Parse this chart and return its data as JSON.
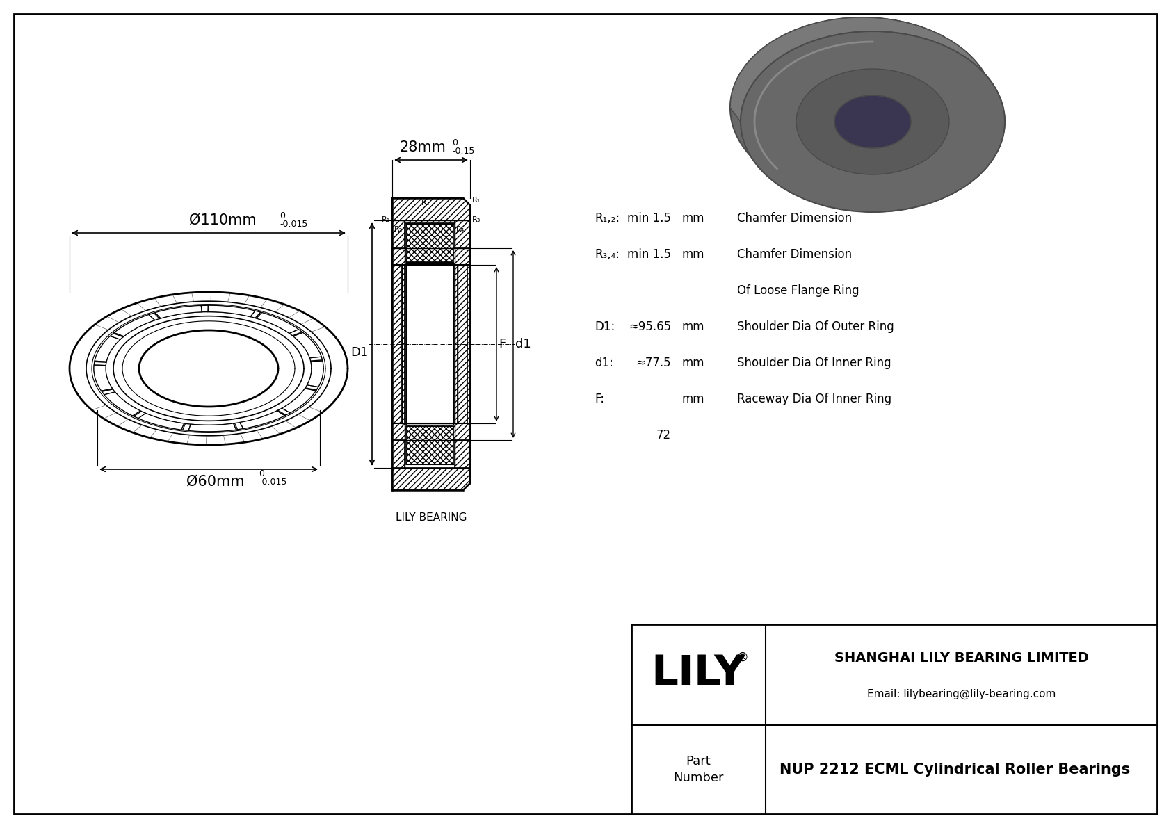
{
  "bg_color": "#ffffff",
  "border_color": "#000000",
  "title": "NUP 2212 ECML Cylindrical Roller Bearings",
  "company": "SHANGHAI LILY BEARING LIMITED",
  "email": "Email: lilybearing@lily-bearing.com",
  "lily_logo": "LILY",
  "part_label": "Part\nNumber",
  "lily_bearing_label": "LILY BEARING",
  "dim_outer_label": "Ø110mm",
  "dim_outer_tol_upper": "0",
  "dim_outer_tol_lower": "-0.015",
  "dim_inner_label": "Ø60mm",
  "dim_inner_tol_upper": "0",
  "dim_inner_tol_lower": "-0.015",
  "dim_width_label": "28mm",
  "dim_width_tol_upper": "0",
  "dim_width_tol_lower": "-0.15",
  "spec_r12_label": "R₁,₂:",
  "spec_r12_val": "min 1.5",
  "spec_r12_unit": "mm",
  "spec_r12_desc": "Chamfer Dimension",
  "spec_r34_label": "R₃,₄:",
  "spec_r34_val": "min 1.5",
  "spec_r34_unit": "mm",
  "spec_r34_desc": "Chamfer Dimension",
  "spec_r34_desc2": "Of Loose Flange Ring",
  "spec_D1_label": "D1:",
  "spec_D1_val": "≈95.65",
  "spec_D1_unit": "mm",
  "spec_D1_desc": "Shoulder Dia Of Outer Ring",
  "spec_d1_label": "d1:",
  "spec_d1_val": "≈77.5",
  "spec_d1_unit": "mm",
  "spec_d1_desc": "Shoulder Dia Of Inner Ring",
  "spec_F_label": "F:",
  "spec_F_val": "72",
  "spec_F_unit": "mm",
  "spec_F_desc": "Raceway Dia Of Inner Ring",
  "line_color": "#000000",
  "hatch_color": "#000000"
}
